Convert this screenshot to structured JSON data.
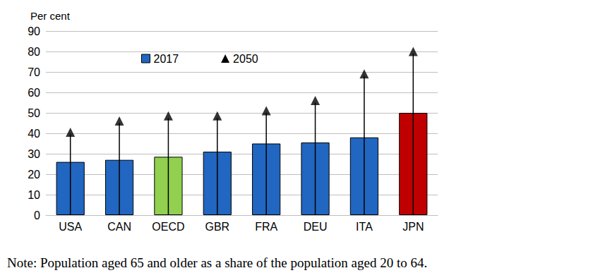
{
  "chart_data": {
    "type": "bar",
    "y_label": "Per cent",
    "note": "Note: Population aged 65 and older as a share of the population aged 20 to 64.",
    "categories": [
      "USA",
      "CAN",
      "OECD",
      "GBR",
      "FRA",
      "DEU",
      "ITA",
      "JPN"
    ],
    "series": [
      {
        "name": "2017",
        "type": "bar",
        "colors": [
          "#2166c0",
          "#2166c0",
          "#92d050",
          "#2166c0",
          "#2166c0",
          "#2166c0",
          "#2166c0",
          "#c00000"
        ],
        "values": [
          26,
          27,
          28.5,
          31,
          35,
          35.5,
          38,
          50
        ]
      },
      {
        "name": "2050",
        "type": "scatter",
        "marker": "triangle",
        "color": "#000000",
        "values": [
          39.5,
          45,
          47.5,
          47.5,
          50,
          55,
          68,
          79
        ]
      }
    ],
    "ylim": [
      0,
      90
    ],
    "yticks": [
      0,
      10,
      20,
      30,
      40,
      50,
      60,
      70,
      80,
      90
    ],
    "grid": true,
    "legend": "top"
  }
}
